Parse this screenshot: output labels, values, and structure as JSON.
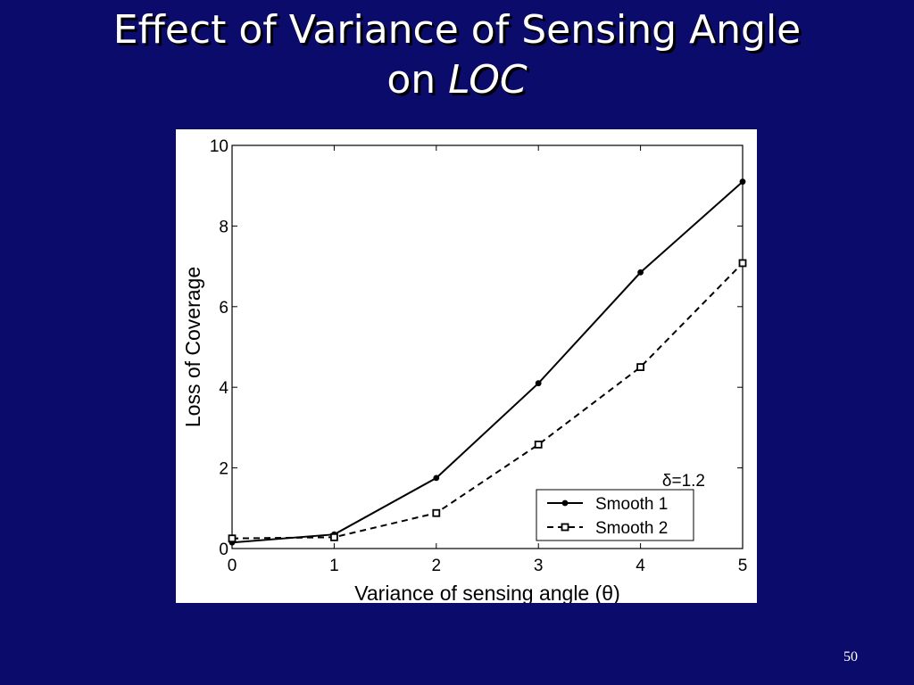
{
  "slide": {
    "title_line1": "Effect of Variance of Sensing Angle",
    "title_line2_prefix": "on ",
    "title_line2_italic": "LOC",
    "page_number": "50"
  },
  "colors": {
    "background": "#0b0b6b",
    "title": "#ffffff",
    "chart_bg": "#ffffff",
    "series": "#000000"
  },
  "chart_data": {
    "type": "line",
    "title": "",
    "xlabel": "Variance of sensing angle (θ)",
    "ylabel": "Loss of Coverage",
    "xlim": [
      0,
      5
    ],
    "ylim": [
      0,
      10
    ],
    "xticks": [
      0,
      1,
      2,
      3,
      4,
      5
    ],
    "yticks": [
      0,
      2,
      4,
      6,
      8,
      10
    ],
    "grid": false,
    "legend_position": "bottom-right",
    "annotation": "δ=1.2",
    "x": [
      0,
      1,
      2,
      3,
      4,
      5
    ],
    "series": [
      {
        "name": "Smooth 1",
        "style": "solid",
        "marker": "dot",
        "values": [
          0.15,
          0.35,
          1.75,
          4.1,
          6.85,
          9.1
        ]
      },
      {
        "name": "Smooth 2",
        "style": "dashed",
        "marker": "square",
        "values": [
          0.25,
          0.28,
          0.88,
          2.58,
          4.5,
          7.08
        ]
      }
    ]
  }
}
